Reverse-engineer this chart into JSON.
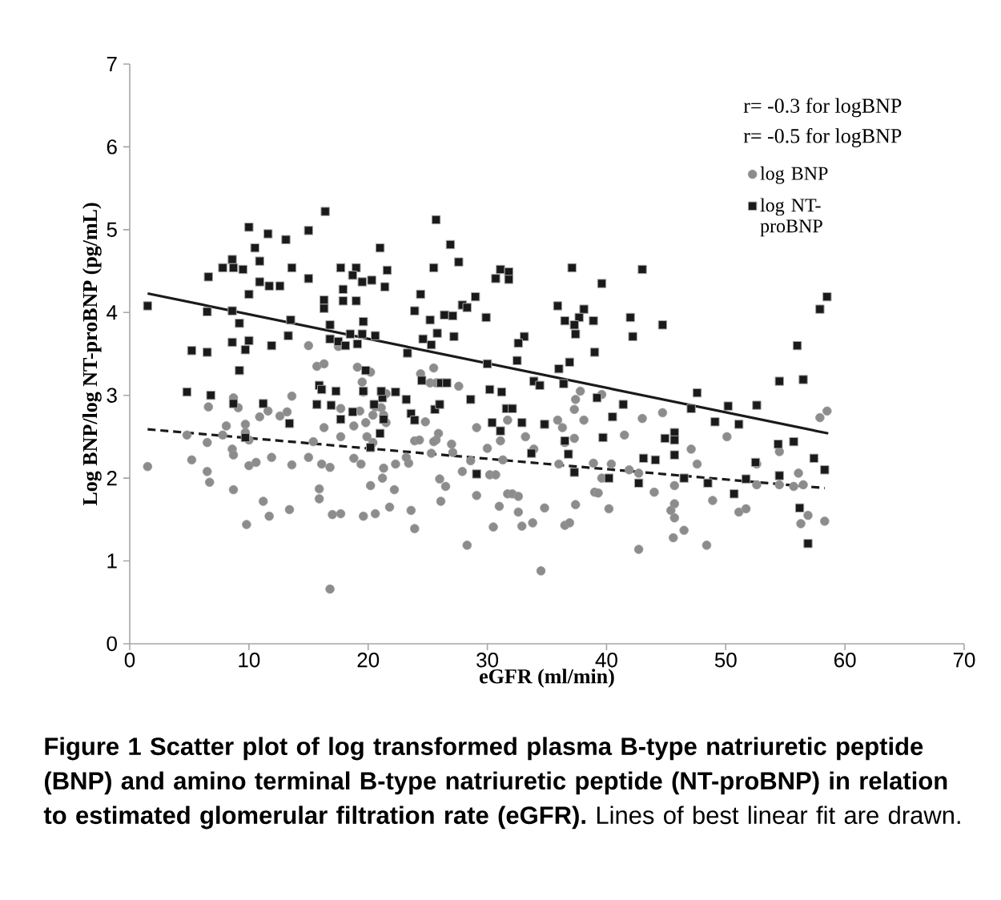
{
  "chart_data": {
    "type": "scatter",
    "xlabel": "eGFR (ml/min)",
    "ylabel": "Log BNP/log NT-proBNP (pg/mL)",
    "xlim": [
      0,
      70
    ],
    "ylim": [
      0,
      7
    ],
    "xticks": [
      0,
      10,
      20,
      30,
      40,
      50,
      60,
      70
    ],
    "yticks": [
      0,
      1,
      2,
      3,
      4,
      5,
      6,
      7
    ],
    "legend": "top right",
    "annotations": [
      "r= -0.3 for logBNP",
      "r= -0.5 for logBNP",
      "**Figure 1 Scatter plot of log transformed plasma B-type natriuretic peptide (BNP) and amino terminal B-type natriuretic peptide (NT-proBNP) in relation to estimated glomerular filtration rate (eGFR).** Lines of best linear fit are drawn."
    ],
    "series": [
      {
        "name": "log BNP",
        "type": "scatter",
        "marker": "circle",
        "color": "#8c8c8c",
        "x": [
          1.5,
          5.2,
          6.5,
          6.7,
          8.7,
          6.5,
          4.8,
          6.6,
          8.7,
          9.1,
          8.1,
          7.8,
          8.6,
          8.7,
          9.7,
          9.7,
          10.0,
          10.0,
          10.6,
          9.8,
          11.2,
          11.7,
          11.9,
          10.9,
          11.6,
          12.6,
          13.2,
          13.6,
          13.4,
          13.6,
          15.0,
          15.0,
          15.4,
          15.7,
          16.3,
          16.3,
          16.1,
          16.8,
          15.9,
          15.9,
          17.0,
          17.7,
          16.8,
          17.5,
          17.7,
          17.7,
          18.8,
          18.8,
          19.4,
          19.1,
          20.2,
          19.5,
          19.6,
          19.3,
          19.8,
          20.4,
          20.6,
          19.9,
          20.4,
          21.1,
          21.3,
          21.5,
          21.5,
          19.6,
          20.6,
          21.8,
          20.2,
          21.2,
          21.3,
          22.2,
          22.3,
          23.4,
          23.2,
          23.6,
          23.9,
          24.4,
          23.9,
          24.3,
          24.8,
          25.5,
          25.2,
          25.7,
          27.6,
          25.9,
          25.7,
          25.3,
          27.0,
          25.5,
          27.1,
          26.0,
          26.5,
          26.1,
          27.9,
          28.3,
          28.6,
          29.1,
          29.1,
          30.0,
          30.2,
          30.7,
          31.0,
          31.1,
          31.3,
          31.7,
          31.7,
          32.1,
          32.6,
          32.6,
          32.9,
          33.2,
          33.9,
          33.8,
          34.8,
          30.5,
          34.5,
          35.9,
          36.3,
          36.5,
          36.0,
          36.5,
          36.9,
          37.4,
          37.3,
          37.3,
          37.4,
          37.8,
          38.1,
          39.6,
          38.9,
          39.0,
          39.3,
          39.6,
          40.2,
          40.4,
          41.5,
          41.9,
          42.7,
          42.7,
          43.0,
          44.0,
          44.7,
          45.7,
          45.4,
          45.7,
          45.7,
          45.6,
          46.5,
          47.1,
          47.6,
          48.4,
          48.9,
          50.1,
          52.6,
          52.6,
          51.1,
          51.7,
          54.5,
          54.5,
          55.7,
          56.1,
          56.5,
          56.9,
          56.3,
          58.3,
          57.9,
          58.5
        ],
        "values": [
          2.14,
          2.22,
          2.08,
          1.95,
          1.86,
          2.43,
          2.52,
          2.86,
          2.97,
          2.85,
          2.63,
          2.52,
          2.35,
          2.28,
          2.65,
          2.55,
          2.46,
          2.15,
          2.19,
          1.44,
          1.72,
          1.54,
          2.25,
          2.74,
          2.81,
          2.75,
          2.8,
          2.99,
          1.62,
          2.16,
          3.6,
          2.25,
          2.44,
          3.35,
          3.38,
          2.61,
          2.17,
          2.13,
          1.87,
          1.75,
          1.56,
          1.57,
          0.66,
          3.59,
          2.84,
          2.5,
          2.63,
          2.24,
          2.17,
          3.34,
          3.28,
          3.16,
          3.04,
          2.81,
          2.67,
          2.76,
          2.86,
          2.5,
          2.43,
          2.85,
          2.76,
          3.02,
          2.67,
          1.54,
          1.57,
          1.65,
          1.91,
          2.0,
          2.12,
          1.86,
          2.17,
          2.18,
          2.25,
          1.61,
          1.39,
          3.26,
          2.45,
          2.46,
          2.68,
          3.33,
          3.15,
          3.15,
          3.11,
          2.54,
          2.46,
          2.3,
          2.41,
          2.44,
          2.31,
          1.99,
          1.9,
          1.72,
          2.08,
          1.19,
          2.21,
          2.61,
          1.79,
          2.36,
          2.04,
          2.04,
          1.66,
          2.45,
          2.22,
          2.7,
          1.81,
          1.81,
          1.78,
          1.59,
          1.42,
          2.5,
          2.35,
          1.46,
          1.64,
          1.41,
          0.88,
          2.7,
          2.61,
          2.43,
          2.17,
          1.43,
          1.46,
          1.68,
          2.48,
          2.83,
          2.95,
          3.05,
          2.7,
          3.01,
          2.18,
          1.83,
          1.82,
          2.0,
          1.63,
          2.17,
          2.52,
          2.1,
          2.06,
          1.14,
          2.72,
          1.83,
          2.79,
          1.91,
          1.61,
          1.69,
          1.52,
          1.28,
          1.37,
          2.35,
          2.17,
          1.19,
          1.73,
          2.5,
          2.17,
          1.92,
          1.59,
          1.63,
          2.32,
          1.92,
          1.9,
          2.06,
          1.92,
          1.55,
          1.45,
          1.48,
          2.73,
          2.81
        ]
      },
      {
        "name": "log NT-proBNP",
        "type": "scatter",
        "marker": "square",
        "color": "#1a1a1a",
        "x": [
          1.5,
          10.0,
          11.6,
          13.1,
          15.0,
          16.4,
          10.5,
          8.6,
          10.9,
          7.8,
          8.7,
          9.5,
          13.6,
          6.6,
          15.0,
          17.7,
          19.0,
          18.7,
          19.5,
          20.3,
          21.6,
          21.0,
          10.9,
          11.7,
          12.6,
          10.0,
          17.9,
          21.4,
          16.3,
          16.3,
          17.9,
          19.0,
          24.4,
          23.9,
          6.5,
          8.6,
          9.2,
          13.5,
          19.6,
          16.8,
          5.2,
          6.5,
          8.6,
          10.0,
          9.7,
          11.9,
          13.3,
          16.8,
          17.5,
          18.1,
          19.1,
          18.5,
          19.5,
          20.6,
          24.6,
          23.3,
          9.2,
          19.8,
          4.8,
          6.8,
          8.7,
          11.2,
          15.9,
          16.1,
          17.3,
          19.6,
          21.2,
          21.1,
          22.3,
          23.2,
          24.5,
          15.7,
          16.9,
          18.7,
          17.7,
          20.5,
          21.3,
          23.6,
          23.9,
          13.4,
          9.7,
          21.0,
          20.2,
          25.7,
          26.9,
          27.6,
          25.5,
          31.1,
          31.8,
          30.7,
          31.8,
          29.0,
          27.9,
          28.3,
          25.2,
          26.4,
          27.1,
          29.9,
          25.8,
          27.2,
          25.3,
          33.1,
          32.6,
          32.5,
          30.0,
          33.9,
          34.4,
          26.1,
          26.6,
          28.6,
          30.2,
          31.2,
          31.6,
          32.1,
          25.6,
          26.0,
          30.4,
          31.1,
          32.9,
          34.8,
          29.1,
          33.7,
          36.5,
          36.8,
          37.3,
          37.1,
          39.6,
          35.9,
          38.1,
          36.5,
          37.7,
          38.9,
          37.3,
          37.4,
          39.0,
          36.9,
          36.0,
          36.4,
          39.2,
          41.4,
          40.5,
          39.7,
          40.2,
          43.0,
          42.0,
          42.2,
          44.7,
          47.6,
          47.1,
          49.1,
          44.9,
          45.7,
          45.7,
          45.7,
          43.1,
          44.1,
          42.7,
          46.5,
          48.5,
          58.5,
          57.9,
          56.0,
          54.5,
          56.5,
          52.6,
          50.2,
          51.1,
          54.4,
          55.7,
          52.5,
          57.4,
          58.3,
          54.5,
          51.7,
          50.7,
          56.2,
          56.9
        ],
        "values": [
          4.08,
          5.03,
          4.95,
          4.88,
          4.99,
          5.22,
          4.78,
          4.64,
          4.62,
          4.54,
          4.54,
          4.52,
          4.54,
          4.43,
          4.41,
          4.54,
          4.54,
          4.45,
          4.37,
          4.39,
          4.51,
          4.78,
          4.37,
          4.32,
          4.32,
          4.22,
          4.28,
          4.31,
          4.15,
          4.05,
          4.14,
          4.14,
          4.22,
          4.02,
          4.01,
          4.02,
          3.87,
          3.91,
          3.89,
          3.85,
          3.54,
          3.52,
          3.64,
          3.66,
          3.55,
          3.6,
          3.72,
          3.68,
          3.65,
          3.6,
          3.62,
          3.74,
          3.74,
          3.72,
          3.68,
          3.51,
          3.3,
          3.3,
          3.04,
          3.0,
          2.9,
          2.9,
          3.12,
          3.07,
          3.05,
          3.05,
          2.97,
          3.05,
          3.04,
          2.95,
          3.18,
          2.89,
          2.88,
          2.8,
          2.71,
          2.89,
          2.71,
          2.78,
          2.7,
          2.66,
          2.49,
          2.54,
          2.37,
          5.12,
          4.82,
          4.61,
          4.54,
          4.52,
          4.49,
          4.41,
          4.4,
          4.19,
          4.09,
          4.06,
          3.91,
          3.97,
          3.96,
          3.94,
          3.75,
          3.71,
          3.61,
          3.71,
          3.63,
          3.42,
          3.38,
          3.17,
          3.12,
          3.15,
          3.15,
          2.95,
          3.07,
          3.04,
          2.84,
          2.84,
          2.83,
          2.89,
          2.67,
          2.57,
          2.67,
          2.65,
          2.05,
          2.3,
          2.45,
          2.29,
          2.07,
          4.54,
          4.35,
          4.08,
          4.04,
          3.9,
          3.94,
          3.9,
          3.85,
          3.74,
          3.52,
          3.4,
          3.32,
          3.14,
          2.97,
          2.89,
          2.74,
          2.49,
          2.0,
          4.52,
          3.94,
          3.71,
          3.85,
          3.03,
          2.84,
          2.68,
          2.48,
          2.55,
          2.46,
          2.28,
          2.24,
          2.22,
          1.94,
          2.0,
          1.94,
          4.19,
          4.04,
          3.6,
          3.17,
          3.19,
          2.88,
          2.87,
          2.65,
          2.41,
          2.44,
          2.19,
          2.24,
          2.1,
          2.03,
          1.99,
          1.81,
          1.64,
          1.21
        ]
      },
      {
        "type": "line",
        "marker": "none",
        "line_style": "solid",
        "color": "#1a1a1a",
        "x": [
          1.5,
          58.6
        ],
        "values": [
          4.23,
          2.54
        ]
      },
      {
        "type": "line",
        "marker": "none",
        "line_style": "dashed",
        "color": "#1a1a1a",
        "x": [
          1.5,
          58.3
        ],
        "values": [
          2.59,
          1.88
        ]
      }
    ]
  }
}
